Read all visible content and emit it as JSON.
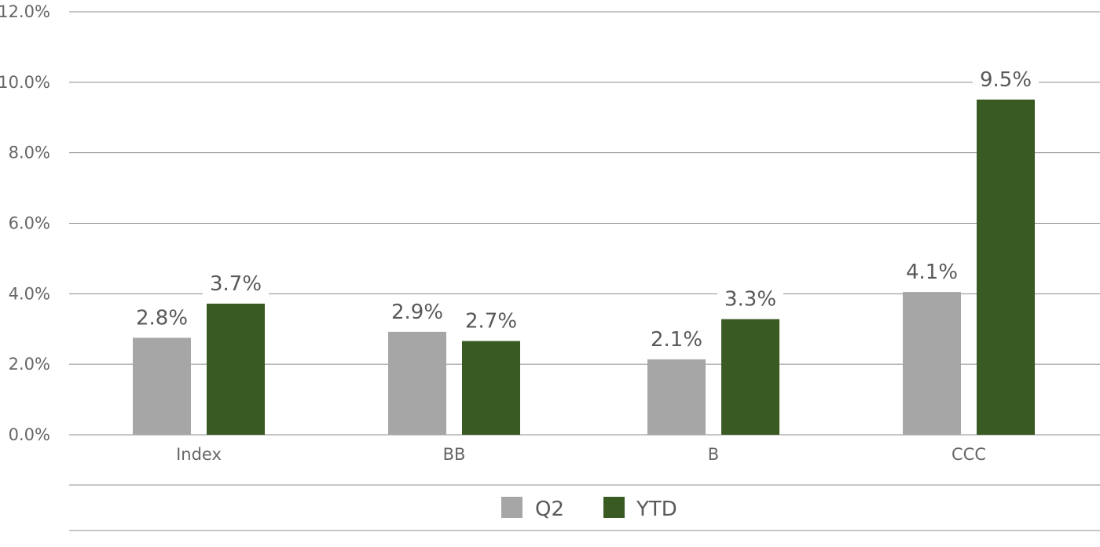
{
  "chart_data": {
    "type": "bar",
    "categories": [
      "Index",
      "BB",
      "B",
      "CCC"
    ],
    "series": [
      {
        "name": "Q2",
        "color": "#a6a6a6",
        "values": [
          2.75,
          2.92,
          2.14,
          4.05
        ],
        "labels": [
          "2.8%",
          "2.9%",
          "2.1%",
          "4.1%"
        ]
      },
      {
        "name": "YTD",
        "color": "#3a5a24",
        "values": [
          3.72,
          2.66,
          3.28,
          9.51
        ],
        "labels": [
          "3.7%",
          "2.7%",
          "3.3%",
          "9.5%"
        ]
      }
    ],
    "ylim": [
      0,
      12
    ],
    "yticks": [
      0,
      2,
      4,
      6,
      8,
      10,
      12
    ],
    "ytick_labels": [
      "0.0%",
      "2.0%",
      "4.0%",
      "6.0%",
      "8.0%",
      "10.0%",
      "12.0%"
    ],
    "grid": true,
    "legend_position": "bottom",
    "title": "",
    "xlabel": "",
    "ylabel": ""
  },
  "colors": {
    "gridline": "#8c8c8c",
    "axis_text": "#666666",
    "label_text": "#595959"
  }
}
